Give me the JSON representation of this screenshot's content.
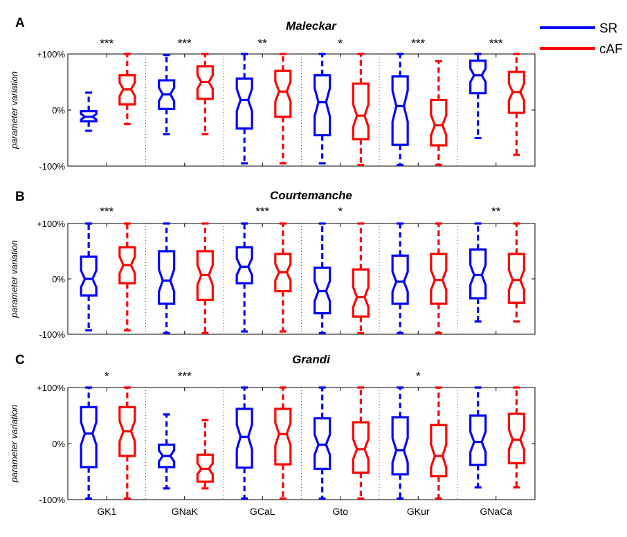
{
  "chart_data": {
    "type": "box",
    "legend": {
      "placement": "top-right",
      "entries": [
        {
          "name": "SR",
          "color": "#0000ff"
        },
        {
          "name": "cAF",
          "color": "#ff0000"
        }
      ]
    },
    "categories": [
      "GK1",
      "GNaK",
      "GCaL",
      "Gto",
      "GKur",
      "GNaCa"
    ],
    "ylabel": "parameter variation",
    "ylim": [
      -100,
      100
    ],
    "yticks": [
      "-100%",
      "0%",
      "+100%"
    ],
    "panels": [
      {
        "label": "A",
        "title": "Maleckar",
        "significance": [
          "***",
          "***",
          "**",
          "*",
          "***",
          "***"
        ],
        "series": [
          {
            "name": "SR",
            "color": "#0000ff",
            "boxes": [
              {
                "whislo": -37,
                "q1": -20,
                "med": -12,
                "q3": -2,
                "whishi": 31,
                "notch": 5
              },
              {
                "whislo": -43,
                "q1": 2,
                "med": 28,
                "q3": 53,
                "whishi": 98,
                "notch": 12
              },
              {
                "whislo": -95,
                "q1": -33,
                "med": 18,
                "q3": 56,
                "whishi": 100,
                "notch": 20
              },
              {
                "whislo": -95,
                "q1": -45,
                "med": 14,
                "q3": 62,
                "whishi": 100,
                "notch": 25
              },
              {
                "whislo": -98,
                "q1": -62,
                "med": 7,
                "q3": 60,
                "whishi": 100,
                "notch": 28
              },
              {
                "whislo": -50,
                "q1": 30,
                "med": 62,
                "q3": 88,
                "whishi": 100,
                "notch": 12
              }
            ]
          },
          {
            "name": "cAF",
            "color": "#ff0000",
            "boxes": [
              {
                "whislo": -25,
                "q1": 10,
                "med": 37,
                "q3": 62,
                "whishi": 100,
                "notch": 12
              },
              {
                "whislo": -43,
                "q1": 20,
                "med": 50,
                "q3": 78,
                "whishi": 100,
                "notch": 12
              },
              {
                "whislo": -95,
                "q1": -12,
                "med": 33,
                "q3": 70,
                "whishi": 100,
                "notch": 18
              },
              {
                "whislo": -98,
                "q1": -52,
                "med": -10,
                "q3": 47,
                "whishi": 100,
                "notch": 20
              },
              {
                "whislo": -98,
                "q1": -63,
                "med": -27,
                "q3": 18,
                "whishi": 87,
                "notch": 18
              },
              {
                "whislo": -80,
                "q1": -5,
                "med": 32,
                "q3": 68,
                "whishi": 100,
                "notch": 15
              }
            ]
          }
        ]
      },
      {
        "label": "B",
        "title": "Courtemanche",
        "significance": [
          "***",
          "",
          "***",
          "*",
          "",
          "**"
        ],
        "series": [
          {
            "name": "SR",
            "color": "#0000ff",
            "boxes": [
              {
                "whislo": -93,
                "q1": -30,
                "med": 0,
                "q3": 40,
                "whishi": 100,
                "notch": 15
              },
              {
                "whislo": -98,
                "q1": -45,
                "med": -3,
                "q3": 50,
                "whishi": 100,
                "notch": 20
              },
              {
                "whislo": -95,
                "q1": -8,
                "med": 22,
                "q3": 57,
                "whishi": 100,
                "notch": 15
              },
              {
                "whislo": -98,
                "q1": -62,
                "med": -22,
                "q3": 20,
                "whishi": 100,
                "notch": 18
              },
              {
                "whislo": -98,
                "q1": -45,
                "med": -5,
                "q3": 42,
                "whishi": 100,
                "notch": 18
              },
              {
                "whislo": -77,
                "q1": -35,
                "med": 7,
                "q3": 53,
                "whishi": 100,
                "notch": 18
              }
            ]
          },
          {
            "name": "cAF",
            "color": "#ff0000",
            "boxes": [
              {
                "whislo": -93,
                "q1": -8,
                "med": 25,
                "q3": 57,
                "whishi": 100,
                "notch": 15
              },
              {
                "whislo": -98,
                "q1": -38,
                "med": 7,
                "q3": 50,
                "whishi": 100,
                "notch": 18
              },
              {
                "whislo": -95,
                "q1": -22,
                "med": 12,
                "q3": 45,
                "whishi": 100,
                "notch": 15
              },
              {
                "whislo": -98,
                "q1": -68,
                "med": -33,
                "q3": 17,
                "whishi": 100,
                "notch": 18
              },
              {
                "whislo": -98,
                "q1": -45,
                "med": -2,
                "q3": 45,
                "whishi": 100,
                "notch": 18
              },
              {
                "whislo": -77,
                "q1": -43,
                "med": -2,
                "q3": 45,
                "whishi": 100,
                "notch": 18
              }
            ]
          }
        ]
      },
      {
        "label": "C",
        "title": "Grandi",
        "significance": [
          "*",
          "***",
          "",
          "",
          "*",
          ""
        ],
        "series": [
          {
            "name": "SR",
            "color": "#0000ff",
            "boxes": [
              {
                "whislo": -98,
                "q1": -42,
                "med": 18,
                "q3": 65,
                "whishi": 100,
                "notch": 20
              },
              {
                "whislo": -80,
                "q1": -42,
                "med": -22,
                "q3": -2,
                "whishi": 52,
                "notch": 10
              },
              {
                "whislo": -98,
                "q1": -43,
                "med": 12,
                "q3": 62,
                "whishi": 100,
                "notch": 22
              },
              {
                "whislo": -98,
                "q1": -45,
                "med": -2,
                "q3": 45,
                "whishi": 100,
                "notch": 18
              },
              {
                "whislo": -98,
                "q1": -55,
                "med": -12,
                "q3": 47,
                "whishi": 100,
                "notch": 22
              },
              {
                "whislo": -78,
                "q1": -38,
                "med": 3,
                "q3": 50,
                "whishi": 100,
                "notch": 18
              }
            ]
          },
          {
            "name": "cAF",
            "color": "#ff0000",
            "boxes": [
              {
                "whislo": -98,
                "q1": -22,
                "med": 22,
                "q3": 65,
                "whishi": 100,
                "notch": 18
              },
              {
                "whislo": -80,
                "q1": -68,
                "med": -45,
                "q3": -20,
                "whishi": 42,
                "notch": 10
              },
              {
                "whislo": -98,
                "q1": -37,
                "med": 17,
                "q3": 62,
                "whishi": 100,
                "notch": 20
              },
              {
                "whislo": -98,
                "q1": -52,
                "med": -10,
                "q3": 38,
                "whishi": 100,
                "notch": 18
              },
              {
                "whislo": -98,
                "q1": -58,
                "med": -22,
                "q3": 33,
                "whishi": 100,
                "notch": 20
              },
              {
                "whislo": -78,
                "q1": -35,
                "med": 7,
                "q3": 53,
                "whishi": 100,
                "notch": 18
              }
            ]
          }
        ]
      }
    ]
  }
}
